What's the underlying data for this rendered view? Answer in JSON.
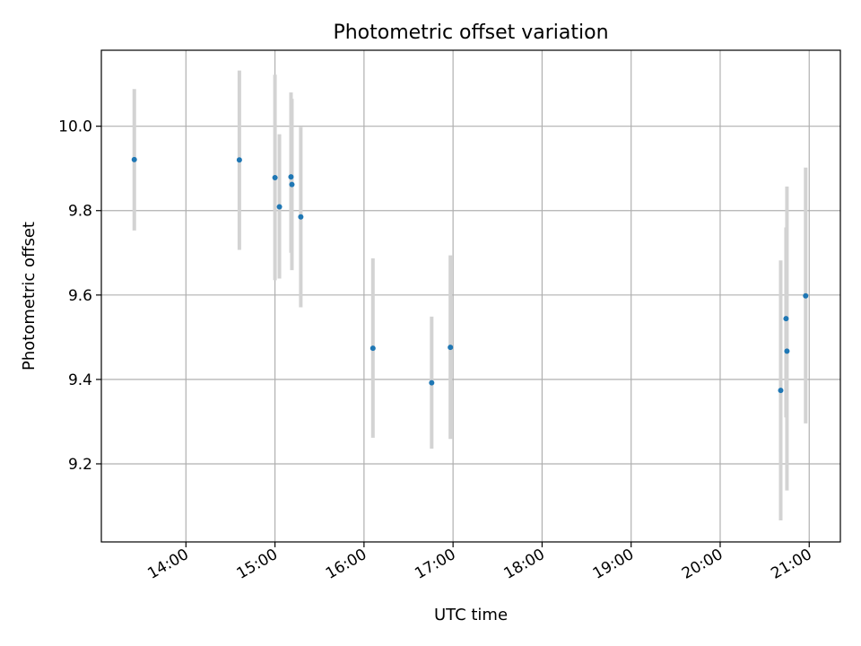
{
  "chart_data": {
    "type": "scatter",
    "title": "Photometric offset variation",
    "xlabel": "UTC time",
    "ylabel": "Photometric offset",
    "x_unit": "hours (UTC)",
    "xlim": [
      13.05,
      21.35
    ],
    "ylim": [
      9.015,
      10.18
    ],
    "grid": true,
    "x_ticks": [
      {
        "value": 14,
        "label": "14:00"
      },
      {
        "value": 15,
        "label": "15:00"
      },
      {
        "value": 16,
        "label": "16:00"
      },
      {
        "value": 17,
        "label": "17:00"
      },
      {
        "value": 18,
        "label": "18:00"
      },
      {
        "value": 19,
        "label": "19:00"
      },
      {
        "value": 20,
        "label": "20:00"
      },
      {
        "value": 21,
        "label": "21:00"
      }
    ],
    "y_ticks": [
      {
        "value": 9.2,
        "label": "9.2"
      },
      {
        "value": 9.4,
        "label": "9.4"
      },
      {
        "value": 9.6,
        "label": "9.6"
      },
      {
        "value": 9.8,
        "label": "9.8"
      },
      {
        "value": 10.0,
        "label": "10.0"
      }
    ],
    "point_color": "#1f77b4",
    "errorbar_color": "#d3d3d3",
    "points": [
      {
        "x": 13.42,
        "y": 9.921,
        "ylow": 9.753,
        "yhigh": 10.088
      },
      {
        "x": 14.6,
        "y": 9.92,
        "ylow": 9.707,
        "yhigh": 10.132
      },
      {
        "x": 15.0,
        "y": 9.878,
        "ylow": 9.635,
        "yhigh": 10.122
      },
      {
        "x": 15.05,
        "y": 9.809,
        "ylow": 9.639,
        "yhigh": 9.981
      },
      {
        "x": 15.18,
        "y": 9.88,
        "ylow": 9.7,
        "yhigh": 10.08
      },
      {
        "x": 15.19,
        "y": 9.862,
        "ylow": 9.659,
        "yhigh": 10.065
      },
      {
        "x": 15.29,
        "y": 9.785,
        "ylow": 9.571,
        "yhigh": 9.998
      },
      {
        "x": 16.1,
        "y": 9.474,
        "ylow": 9.262,
        "yhigh": 9.687
      },
      {
        "x": 16.76,
        "y": 9.392,
        "ylow": 9.236,
        "yhigh": 9.549
      },
      {
        "x": 16.97,
        "y": 9.476,
        "ylow": 9.259,
        "yhigh": 9.694
      },
      {
        "x": 20.68,
        "y": 9.374,
        "ylow": 9.066,
        "yhigh": 9.682
      },
      {
        "x": 20.74,
        "y": 9.544,
        "ylow": 9.31,
        "yhigh": 9.76
      },
      {
        "x": 20.75,
        "y": 9.467,
        "ylow": 9.137,
        "yhigh": 9.857
      },
      {
        "x": 20.96,
        "y": 9.598,
        "ylow": 9.296,
        "yhigh": 9.902
      }
    ]
  }
}
